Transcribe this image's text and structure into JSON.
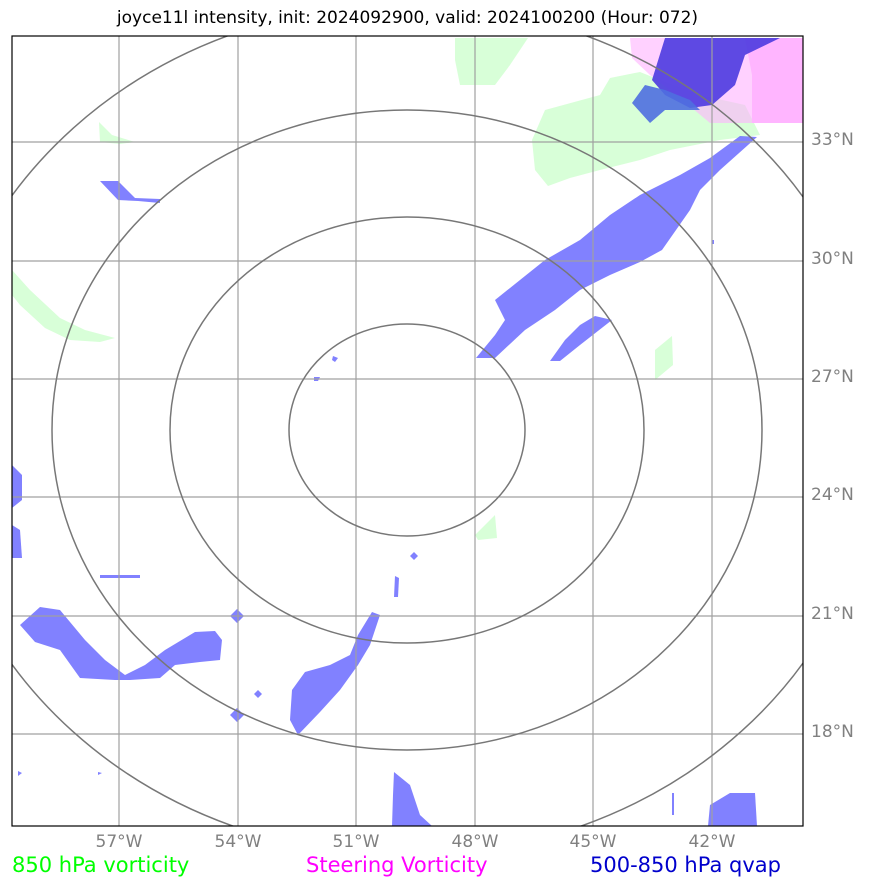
{
  "title": "joyce11l intensity, init: 2024092900, valid: 2024100200 (Hour: 072)",
  "map": {
    "lat_labels": [
      "33°N",
      "30°N",
      "27°N",
      "24°N",
      "21°N",
      "18°N"
    ],
    "lon_labels": [
      "57°W",
      "54°W",
      "51°W",
      "48°W",
      "45°W",
      "42°W"
    ],
    "range_rings": 4,
    "colors": {
      "vorticity_850": "#ccffcc",
      "steering_vorticity": "#ff99ff",
      "qvap_500_850": "#6666ff",
      "grid": "#999999",
      "rings": "#777777"
    }
  },
  "legend": {
    "vorticity_850": {
      "label": "850 hPa vorticity",
      "color": "#00ff00"
    },
    "steering_vorticity": {
      "label": "Steering Vorticity",
      "color": "#ff00ff"
    },
    "qvap": {
      "label": "500-850 hPa qvap",
      "color": "#0000cc"
    }
  }
}
